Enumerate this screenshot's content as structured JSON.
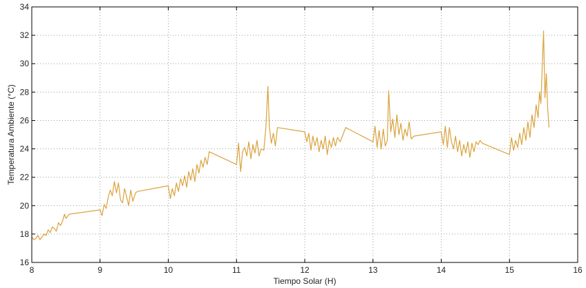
{
  "chart_data": {
    "type": "line",
    "xlabel": "Tiempo Solar (H)",
    "ylabel": "Temperatura Ambiente  (°C)",
    "xlim": [
      8,
      16
    ],
    "ylim": [
      16,
      34
    ],
    "xticks": [
      "8",
      "9",
      "10",
      "11",
      "12",
      "13",
      "14",
      "15",
      "16"
    ],
    "yticks": [
      "16",
      "18",
      "20",
      "22",
      "24",
      "26",
      "28",
      "30",
      "32",
      "34"
    ],
    "grid": true,
    "line_color": "#d9a23b",
    "series": [
      {
        "name": "",
        "x": [
          8.0,
          8.03,
          8.06,
          8.09,
          8.12,
          8.15,
          8.18,
          8.21,
          8.24,
          8.27,
          8.3,
          8.33,
          8.36,
          8.39,
          8.42,
          8.45,
          8.48,
          8.5,
          8.55,
          9.0,
          9.03,
          9.06,
          9.09,
          9.12,
          9.15,
          9.18,
          9.21,
          9.24,
          9.27,
          9.3,
          9.33,
          9.36,
          9.39,
          9.42,
          9.45,
          9.48,
          9.52,
          9.55,
          10.0,
          10.03,
          10.06,
          10.09,
          10.12,
          10.15,
          10.18,
          10.21,
          10.24,
          10.27,
          10.3,
          10.33,
          10.36,
          10.39,
          10.42,
          10.45,
          10.48,
          10.51,
          10.54,
          10.57,
          10.6,
          11.0,
          11.03,
          11.06,
          11.09,
          11.12,
          11.15,
          11.18,
          11.21,
          11.24,
          11.27,
          11.3,
          11.33,
          11.36,
          11.4,
          11.43,
          11.46,
          11.48,
          11.51,
          11.54,
          11.57,
          11.6,
          12.0,
          12.03,
          12.06,
          12.09,
          12.12,
          12.15,
          12.18,
          12.21,
          12.24,
          12.27,
          12.3,
          12.33,
          12.36,
          12.39,
          12.42,
          12.45,
          12.48,
          12.52,
          12.56,
          12.6,
          13.0,
          13.03,
          13.06,
          13.09,
          13.12,
          13.15,
          13.18,
          13.21,
          13.23,
          13.26,
          13.29,
          13.32,
          13.35,
          13.38,
          13.41,
          13.44,
          13.47,
          13.5,
          13.53,
          13.56,
          13.6,
          14.0,
          14.03,
          14.06,
          14.09,
          14.12,
          14.15,
          14.18,
          14.21,
          14.24,
          14.27,
          14.3,
          14.33,
          14.36,
          14.39,
          14.42,
          14.45,
          14.48,
          14.51,
          14.54,
          14.57,
          14.6,
          15.0,
          15.03,
          15.06,
          15.09,
          15.12,
          15.15,
          15.18,
          15.21,
          15.24,
          15.27,
          15.3,
          15.33,
          15.36,
          15.39,
          15.42,
          15.44,
          15.46,
          15.48,
          15.5,
          15.52,
          15.54,
          15.56,
          15.58
        ],
        "y": [
          17.8,
          17.6,
          17.7,
          17.9,
          17.6,
          17.8,
          18.0,
          17.9,
          18.3,
          18.1,
          18.5,
          18.4,
          18.2,
          18.8,
          18.6,
          18.9,
          19.4,
          19.1,
          19.4,
          19.7,
          19.3,
          20.1,
          19.8,
          20.6,
          21.1,
          20.7,
          21.7,
          20.9,
          21.6,
          20.4,
          20.2,
          21.2,
          20.6,
          20.0,
          21.1,
          20.3,
          20.9,
          21.0,
          21.4,
          20.5,
          21.2,
          20.7,
          21.6,
          21.0,
          21.9,
          21.4,
          22.1,
          21.3,
          22.4,
          21.8,
          22.6,
          21.7,
          22.9,
          22.3,
          23.2,
          22.7,
          23.4,
          22.9,
          23.8,
          22.9,
          24.4,
          22.4,
          23.8,
          24.1,
          23.5,
          24.5,
          23.3,
          24.3,
          23.7,
          24.6,
          23.5,
          24.0,
          23.9,
          25.5,
          28.4,
          25.6,
          24.4,
          25.1,
          24.2,
          25.5,
          25.2,
          24.5,
          25.1,
          23.9,
          24.9,
          24.2,
          24.8,
          23.8,
          24.6,
          24.0,
          24.9,
          23.6,
          24.6,
          24.1,
          24.8,
          24.2,
          24.8,
          24.5,
          25.0,
          25.5,
          24.5,
          25.6,
          24.1,
          25.3,
          24.0,
          25.4,
          24.2,
          24.6,
          28.1,
          25.2,
          26.1,
          24.8,
          26.4,
          25.0,
          25.8,
          24.6,
          25.4,
          24.9,
          25.9,
          24.7,
          24.9,
          25.2,
          24.3,
          25.6,
          24.1,
          25.5,
          24.5,
          24.0,
          24.9,
          23.8,
          24.6,
          23.5,
          24.3,
          23.7,
          24.5,
          23.4,
          24.4,
          23.8,
          24.5,
          24.3,
          24.6,
          24.4,
          23.6,
          24.8,
          23.9,
          24.6,
          24.1,
          25.1,
          24.3,
          25.5,
          24.6,
          25.9,
          24.8,
          26.4,
          25.5,
          27.1,
          26.2,
          28.0,
          27.2,
          29.8,
          32.3,
          27.6,
          29.3,
          26.8,
          25.5
        ]
      }
    ]
  }
}
